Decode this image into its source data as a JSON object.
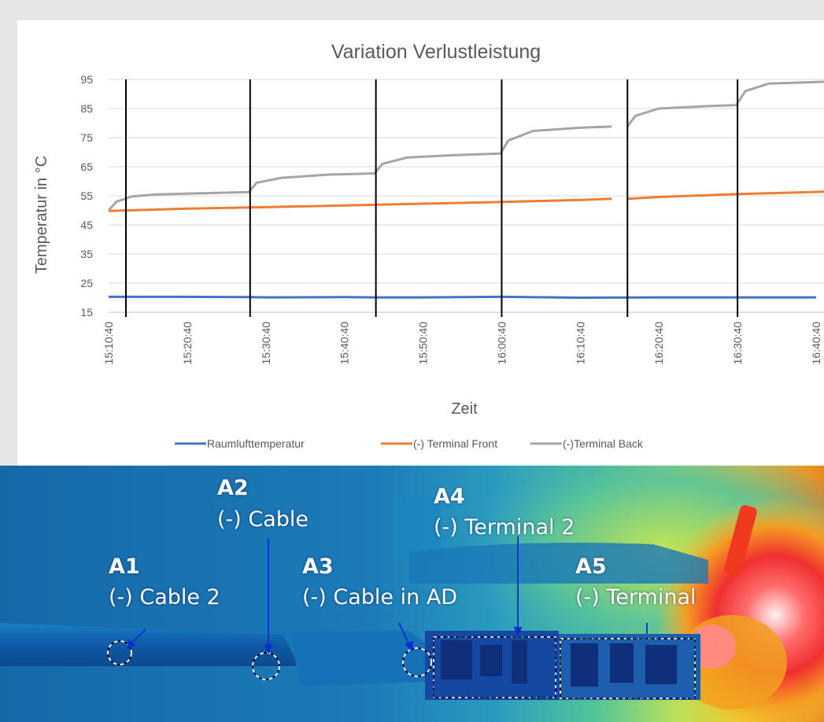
{
  "chart_data": {
    "type": "line",
    "title": "Variation Verlustleistung",
    "xlabel": "Zeit",
    "ylabel": "Temperatur in °C",
    "x_ticks": [
      "15:10:40",
      "15:20:40",
      "15:30:40",
      "15:40:40",
      "15:50:40",
      "16:00:40",
      "16:10:40",
      "16:20:40",
      "16:30:40",
      "16:40:40"
    ],
    "y_ticks": [
      15,
      25,
      35,
      45,
      55,
      65,
      75,
      85,
      95
    ],
    "xlim": [
      "15:10:40",
      "16:41:40"
    ],
    "ylim": [
      15,
      95
    ],
    "grid": "horizontal",
    "legend_position": "bottom",
    "step_markers": [
      "15:28:40",
      "15:44:40",
      "16:00:40",
      "16:16:40",
      "16:30:40"
    ],
    "series": [
      {
        "name": "Raumlufttemperatur",
        "color": "#4472c4",
        "x": [
          "15:10:40",
          "15:20:40",
          "15:28:40",
          "15:30:40",
          "15:40:40",
          "15:44:40",
          "15:50:40",
          "16:00:40",
          "16:10:40",
          "16:20:40",
          "16:30:40",
          "16:40:40"
        ],
        "y": [
          20.3,
          20.3,
          20.2,
          20.1,
          20.2,
          20.1,
          20.1,
          20.3,
          20.0,
          20.1,
          20.1,
          20.1
        ]
      },
      {
        "name": "(-) Terminal Front",
        "color": "#ed7d31",
        "x": [
          "15:10:40",
          "15:20:40",
          "15:30:40",
          "15:40:40",
          "15:50:40",
          "16:00:40",
          "16:10:40",
          "16:14:40",
          "16:16:40",
          "16:20:40",
          "16:30:40",
          "16:41:40"
        ],
        "y": [
          49.8,
          50.6,
          51.1,
          51.7,
          52.3,
          52.9,
          53.6,
          54.0,
          54.0,
          54.6,
          55.6,
          56.4
        ]
      },
      {
        "name": "(-)Terminal Back",
        "color": "#a5a5a5",
        "x": [
          "15:10:40",
          "15:11:40",
          "15:13:40",
          "15:16:40",
          "15:22:40",
          "15:28:30",
          "15:29:30",
          "15:32:40",
          "15:38:40",
          "15:44:30",
          "15:45:30",
          "15:48:40",
          "15:54:40",
          "16:00:30",
          "16:01:30",
          "16:04:40",
          "16:10:40",
          "16:14:40",
          "16:16:40",
          "16:17:40",
          "16:20:40",
          "16:26:40",
          "16:30:30",
          "16:31:40",
          "16:34:40",
          "16:41:40"
        ],
        "y": [
          50.0,
          53.0,
          54.8,
          55.5,
          55.9,
          56.3,
          59.5,
          61.2,
          62.3,
          62.7,
          66.0,
          68.2,
          69.0,
          69.5,
          74.0,
          77.3,
          78.4,
          78.8,
          78.8,
          82.5,
          85.0,
          85.8,
          86.2,
          91.0,
          93.6,
          94.2
        ]
      }
    ]
  },
  "thermal": {
    "annotations": [
      {
        "code": "A1",
        "label": "(-) Cable 2"
      },
      {
        "code": "A2",
        "label": "(-) Cable"
      },
      {
        "code": "A3",
        "label": "(-) Cable in AD"
      },
      {
        "code": "A4",
        "label": "(-) Terminal 2"
      },
      {
        "code": "A5",
        "label": "(-) Terminal"
      }
    ]
  }
}
